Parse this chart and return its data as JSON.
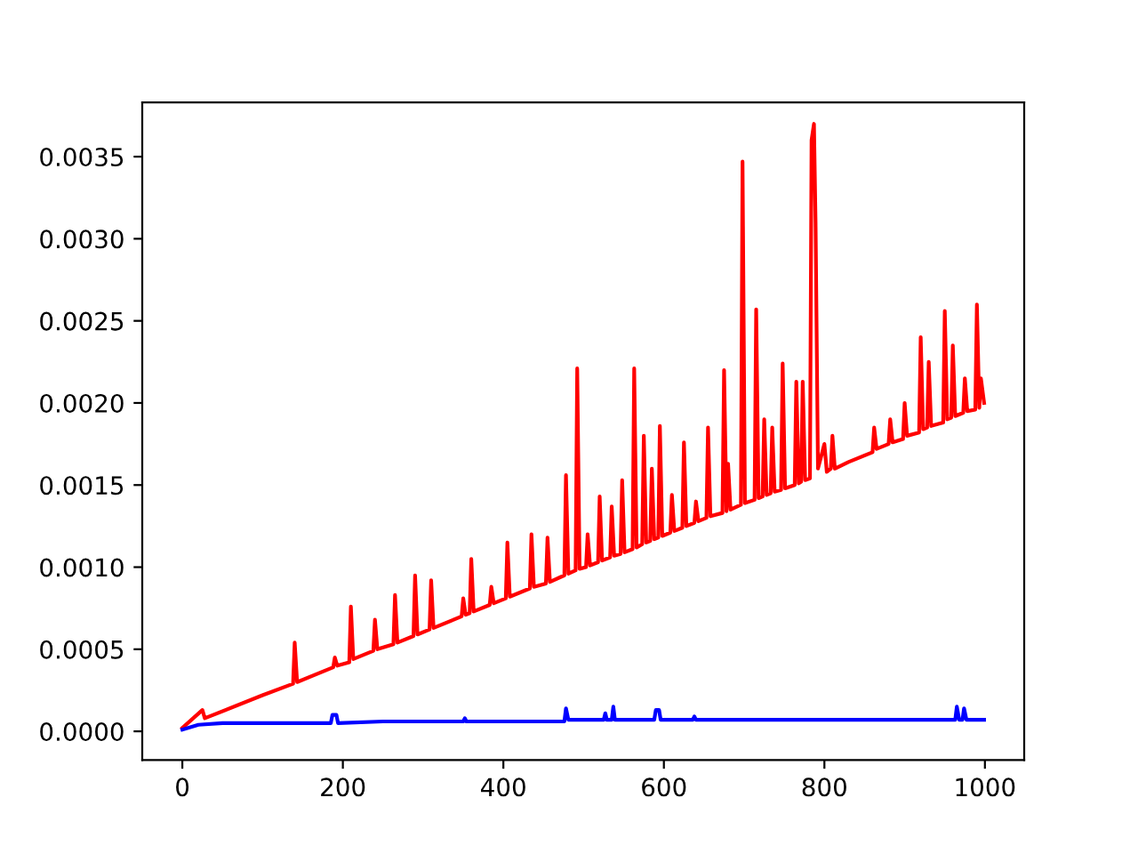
{
  "chart_data": {
    "type": "line",
    "xlim": [
      -49.95,
      1048.95
    ],
    "ylim": [
      -0.000175,
      0.00383
    ],
    "xticks": [
      0,
      200,
      400,
      600,
      800,
      1000
    ],
    "yticks": [
      {
        "value": 0,
        "label": "0.0000"
      },
      {
        "value": 0.0005,
        "label": "0.0005"
      },
      {
        "value": 0.001,
        "label": "0.0010"
      },
      {
        "value": 0.0015,
        "label": "0.0015"
      },
      {
        "value": 0.002,
        "label": "0.0020"
      },
      {
        "value": 0.0025,
        "label": "0.0025"
      },
      {
        "value": 0.003,
        "label": "0.0030"
      },
      {
        "value": 0.0035,
        "label": "0.0035"
      }
    ],
    "grid": false,
    "marker": "none",
    "line_style": "solid",
    "series": [
      {
        "color": "#ff0000",
        "x": [
          0,
          25,
          28,
          100,
          138,
          140,
          143,
          188,
          190,
          193,
          208,
          210,
          213,
          238,
          240,
          243,
          263,
          265,
          268,
          288,
          290,
          293,
          308,
          310,
          313,
          348,
          350,
          353,
          358,
          360,
          363,
          383,
          385,
          388,
          403,
          405,
          408,
          433,
          435,
          438,
          453,
          455,
          458,
          476,
          478,
          481,
          490,
          492,
          495,
          503,
          505,
          508,
          518,
          520,
          523,
          533,
          535,
          538,
          546,
          548,
          551,
          561,
          563,
          566,
          573,
          575,
          578,
          583,
          585,
          588,
          593,
          595,
          598,
          608,
          610,
          613,
          623,
          625,
          628,
          638,
          640,
          643,
          653,
          655,
          658,
          673,
          675,
          678,
          680,
          683,
          696,
          698,
          701,
          713,
          715,
          718,
          723,
          725,
          728,
          733,
          735,
          738,
          746,
          748,
          751,
          763,
          765,
          768,
          771,
          773,
          776,
          782,
          784,
          787,
          789,
          792,
          800,
          803,
          808,
          810,
          813,
          830,
          860,
          862,
          865,
          880,
          882,
          885,
          898,
          900,
          903,
          918,
          920,
          923,
          928,
          930,
          933,
          948,
          950,
          953,
          958,
          960,
          963,
          973,
          975,
          978,
          988,
          990,
          993,
          995,
          999
        ],
        "values": [
          2e-05,
          0.00013,
          8e-05,
          0.00022,
          0.00029,
          0.00054,
          0.0003,
          0.00039,
          0.00045,
          0.0004,
          0.00042,
          0.00076,
          0.00044,
          0.00049,
          0.00068,
          0.0005,
          0.00053,
          0.00083,
          0.00054,
          0.00058,
          0.00095,
          0.00059,
          0.00062,
          0.00092,
          0.00063,
          0.0007,
          0.00081,
          0.00071,
          0.00072,
          0.00105,
          0.00073,
          0.00077,
          0.00088,
          0.00078,
          0.00081,
          0.00115,
          0.00082,
          0.00087,
          0.0012,
          0.00088,
          0.0009,
          0.00118,
          0.00091,
          0.00095,
          0.00156,
          0.00096,
          0.00098,
          0.00221,
          0.00099,
          0.001,
          0.0012,
          0.00101,
          0.00103,
          0.00143,
          0.00104,
          0.00106,
          0.00137,
          0.00107,
          0.00108,
          0.00153,
          0.00109,
          0.00111,
          0.00221,
          0.00112,
          0.00114,
          0.0018,
          0.00115,
          0.00116,
          0.0016,
          0.00117,
          0.00118,
          0.00186,
          0.00119,
          0.00121,
          0.00144,
          0.00122,
          0.00124,
          0.00176,
          0.00125,
          0.00127,
          0.0014,
          0.00128,
          0.0013,
          0.00185,
          0.00131,
          0.00133,
          0.0022,
          0.00134,
          0.00163,
          0.00135,
          0.00138,
          0.00347,
          0.00139,
          0.00141,
          0.00257,
          0.00142,
          0.00143,
          0.0019,
          0.00144,
          0.00145,
          0.00185,
          0.00146,
          0.00147,
          0.00224,
          0.00148,
          0.0015,
          0.00213,
          0.00151,
          0.00152,
          0.00213,
          0.00153,
          0.00154,
          0.0036,
          0.0037,
          0.0031,
          0.0016,
          0.00175,
          0.00158,
          0.0016,
          0.0018,
          0.0016,
          0.00164,
          0.0017,
          0.00185,
          0.00172,
          0.00175,
          0.0019,
          0.00176,
          0.00178,
          0.002,
          0.0018,
          0.00182,
          0.0024,
          0.00184,
          0.00185,
          0.00225,
          0.00186,
          0.00188,
          0.00256,
          0.0019,
          0.00191,
          0.00235,
          0.00192,
          0.00194,
          0.00215,
          0.00195,
          0.00196,
          0.0026,
          0.00197,
          0.00215,
          0.002
        ]
      },
      {
        "color": "#0000ff",
        "x": [
          0,
          20,
          50,
          185,
          187,
          192,
          194,
          250,
          350,
          352,
          354,
          476,
          478,
          481,
          525,
          527,
          529,
          535,
          537,
          539,
          588,
          590,
          594,
          596,
          636,
          638,
          640,
          963,
          965,
          968,
          972,
          974,
          977,
          999
        ],
        "values": [
          1e-05,
          4e-05,
          5e-05,
          5e-05,
          0.0001,
          0.0001,
          5e-05,
          6e-05,
          6e-05,
          8e-05,
          6e-05,
          6e-05,
          0.00014,
          7e-05,
          7e-05,
          0.00011,
          7e-05,
          7e-05,
          0.00015,
          7e-05,
          7e-05,
          0.00013,
          0.00013,
          7e-05,
          7e-05,
          9e-05,
          7e-05,
          7e-05,
          0.00015,
          7e-05,
          7e-05,
          0.00014,
          7e-05,
          7e-05
        ]
      }
    ]
  }
}
